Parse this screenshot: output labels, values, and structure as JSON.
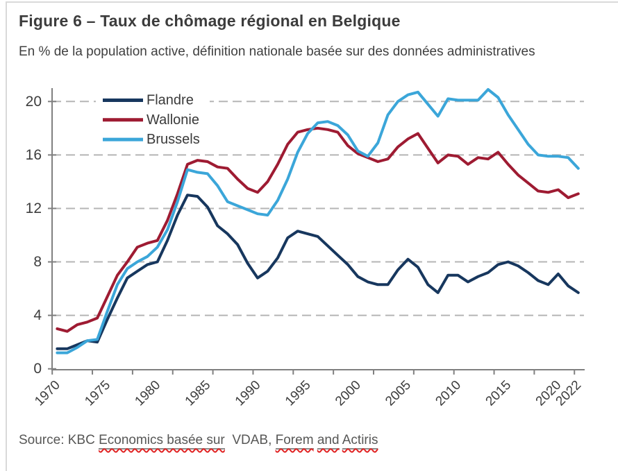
{
  "chart_data": {
    "type": "line",
    "title": "Figure 6 – Taux de chômage régional en Belgique",
    "subtitle": "En % de la population active, définition nationale basée sur des données administratives",
    "x": [
      1970,
      1971,
      1972,
      1973,
      1974,
      1975,
      1976,
      1977,
      1978,
      1979,
      1980,
      1981,
      1982,
      1983,
      1984,
      1985,
      1986,
      1987,
      1988,
      1989,
      1990,
      1991,
      1992,
      1993,
      1994,
      1995,
      1996,
      1997,
      1998,
      1999,
      2000,
      2001,
      2002,
      2003,
      2004,
      2005,
      2006,
      2007,
      2008,
      2009,
      2010,
      2011,
      2012,
      2013,
      2014,
      2015,
      2016,
      2017,
      2018,
      2019,
      2020,
      2021,
      2022
    ],
    "xticklabels": [
      "1970",
      "1975",
      "1980",
      "1985",
      "1990",
      "1995",
      "2000",
      "2005",
      "2010",
      "2015",
      "2020",
      "2022"
    ],
    "yticks": [
      0,
      4,
      8,
      12,
      16,
      20
    ],
    "ylim": [
      0,
      21
    ],
    "grid": "horizontal dashed",
    "legend_position": "top-left inside, white background",
    "series": [
      {
        "name": "Flandre",
        "color": "#17375e",
        "values": [
          1.5,
          1.5,
          1.8,
          2.1,
          2.0,
          3.7,
          5.3,
          6.8,
          7.3,
          7.8,
          8.0,
          9.6,
          11.5,
          13.0,
          12.9,
          12.1,
          10.7,
          10.1,
          9.3,
          7.9,
          6.8,
          7.3,
          8.3,
          9.8,
          10.3,
          10.1,
          9.9,
          9.2,
          8.5,
          7.8,
          6.9,
          6.5,
          6.3,
          6.3,
          7.4,
          8.2,
          7.6,
          6.3,
          5.7,
          7.0,
          7.0,
          6.5,
          6.9,
          7.2,
          7.8,
          8.0,
          7.7,
          7.2,
          6.6,
          6.3,
          7.1,
          6.2,
          5.7
        ]
      },
      {
        "name": "Wallonie",
        "color": "#9e1b32",
        "values": [
          3.0,
          2.8,
          3.3,
          3.5,
          3.8,
          5.4,
          7.0,
          8.0,
          9.1,
          9.4,
          9.6,
          11.1,
          13.1,
          15.3,
          15.6,
          15.5,
          15.1,
          15.0,
          14.2,
          13.5,
          13.2,
          14.0,
          15.3,
          16.8,
          17.7,
          17.9,
          18.0,
          17.9,
          17.7,
          16.7,
          16.1,
          15.8,
          15.5,
          15.7,
          16.6,
          17.2,
          17.6,
          16.5,
          15.4,
          16.0,
          15.9,
          15.3,
          15.8,
          15.7,
          16.2,
          15.3,
          14.5,
          13.9,
          13.3,
          13.2,
          13.4,
          12.8,
          13.1
        ]
      },
      {
        "name": "Brussels",
        "color": "#3ba6d9",
        "values": [
          1.2,
          1.2,
          1.6,
          2.1,
          2.2,
          4.3,
          6.3,
          7.5,
          8.0,
          8.4,
          9.1,
          10.4,
          12.5,
          14.9,
          14.7,
          14.6,
          13.7,
          12.5,
          12.2,
          11.9,
          11.6,
          11.5,
          12.6,
          14.2,
          16.2,
          17.6,
          18.4,
          18.5,
          18.2,
          17.5,
          16.3,
          15.9,
          16.9,
          19.0,
          20.0,
          20.5,
          20.7,
          19.8,
          18.9,
          20.2,
          20.1,
          20.1,
          20.1,
          20.9,
          20.3,
          19.0,
          17.9,
          16.8,
          16.0,
          15.9,
          15.9,
          15.8,
          15.0
        ]
      }
    ],
    "colors": {
      "grid": "#b5b5b5",
      "axis": "#808080",
      "tick_label": "#3d3d3d",
      "legend_text": "#3a3a3a",
      "squiggle": "#e02323"
    }
  },
  "source": {
    "segments": [
      {
        "text": "Source: KBC ",
        "underlined": false
      },
      {
        "text": "Economics basée sur",
        "underlined": true
      },
      {
        "text": "  VDAB, ",
        "underlined": false
      },
      {
        "text": "Forem",
        "underlined": true
      },
      {
        "text": " ",
        "underlined": false
      },
      {
        "text": "and",
        "underlined": true
      },
      {
        "text": " ",
        "underlined": false
      },
      {
        "text": "Actiris",
        "underlined": true
      }
    ]
  }
}
